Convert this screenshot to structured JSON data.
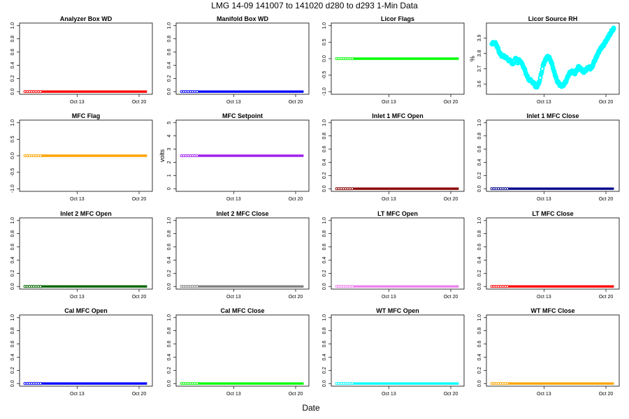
{
  "figure": {
    "title": "LMG  14-09    141007 to 141020    d280 to d293   1-Min Data",
    "xlabel": "Date"
  },
  "chart_data": [
    {
      "type": "scatter",
      "title": "Analyzer Box WD",
      "ylabel": "",
      "ylim": [
        0,
        1
      ],
      "yticks": [
        "0.0",
        "0.2",
        "0.4",
        "0.6",
        "0.8",
        "1.0"
      ],
      "yvals": [
        0,
        0.2,
        0.4,
        0.6,
        0.8,
        1.0
      ],
      "xticks": [
        "Oct 13",
        "Oct 20"
      ],
      "color": "#ff0000",
      "series": {
        "name": "Analyzer Box WD",
        "x_days": [
          7.1,
          20.9
        ],
        "y_constant": 0
      }
    },
    {
      "type": "scatter",
      "title": "Manifold Box WD",
      "ylabel": "",
      "ylim": [
        0,
        1
      ],
      "yticks": [
        "0.0",
        "0.2",
        "0.4",
        "0.6",
        "0.8",
        "1.0"
      ],
      "yvals": [
        0,
        0.2,
        0.4,
        0.6,
        0.8,
        1.0
      ],
      "xticks": [
        "Oct 13",
        "Oct 20"
      ],
      "color": "#0000ff",
      "series": {
        "name": "Manifold Box WD",
        "x_days": [
          7.1,
          20.9
        ],
        "y_constant": 0
      }
    },
    {
      "type": "scatter",
      "title": "Licor Flags",
      "ylabel": "",
      "ylim": [
        -1,
        1
      ],
      "yticks": [
        "-1.0",
        "-0.5",
        "0.0",
        "0.5",
        "1.0"
      ],
      "yvals": [
        -1,
        -0.5,
        0,
        0.5,
        1
      ],
      "xticks": [
        "Oct 13",
        "Oct 20"
      ],
      "color": "#00ff00",
      "series": {
        "name": "Licor Flags",
        "x_days": [
          7.1,
          20.9
        ],
        "y_constant": 0
      }
    },
    {
      "type": "scatter",
      "title": "Licor Source RH",
      "ylabel": "%",
      "ylim": [
        3.55,
        3.98
      ],
      "yticks": [
        "3.6",
        "3.7",
        "3.8",
        "3.9"
      ],
      "yvals": [
        3.6,
        3.7,
        3.8,
        3.9
      ],
      "xticks": [
        "Oct 13",
        "Oct 20"
      ],
      "color": "#00ffff",
      "series": {
        "name": "Licor Source RH",
        "x": [
          7.1,
          7.4,
          7.6,
          7.8,
          8.0,
          8.3,
          8.6,
          8.9,
          9.2,
          9.5,
          9.8,
          10.0,
          10.2,
          10.5,
          10.8,
          11.0,
          11.3,
          11.6,
          11.9,
          12.1,
          12.3,
          12.5,
          12.7,
          12.9,
          13.1,
          13.3,
          13.5,
          13.7,
          13.9,
          14.1,
          14.3,
          14.5,
          14.7,
          14.9,
          15.1,
          15.3,
          15.5,
          15.7,
          15.9,
          16.1,
          16.3,
          16.5,
          16.7,
          16.9,
          17.1,
          17.3,
          17.5,
          17.7,
          17.9,
          18.1,
          18.3,
          18.5,
          18.7,
          18.9,
          19.1,
          19.3,
          19.5,
          19.7,
          19.9,
          20.1,
          20.3,
          20.5,
          20.7,
          20.9
        ],
        "y": [
          3.86,
          3.87,
          3.86,
          3.83,
          3.8,
          3.78,
          3.78,
          3.76,
          3.75,
          3.73,
          3.77,
          3.74,
          3.76,
          3.73,
          3.7,
          3.66,
          3.63,
          3.62,
          3.6,
          3.58,
          3.59,
          3.62,
          3.67,
          3.72,
          3.75,
          3.77,
          3.78,
          3.76,
          3.73,
          3.69,
          3.65,
          3.62,
          3.6,
          3.59,
          3.59,
          3.6,
          3.62,
          3.65,
          3.67,
          3.68,
          3.68,
          3.67,
          3.69,
          3.71,
          3.7,
          3.69,
          3.68,
          3.69,
          3.7,
          3.71,
          3.7,
          3.72,
          3.75,
          3.77,
          3.8,
          3.82,
          3.84,
          3.85,
          3.87,
          3.89,
          3.91,
          3.93,
          3.95,
          3.96
        ]
      }
    },
    {
      "type": "scatter",
      "title": "MFC Flag",
      "ylabel": "",
      "ylim": [
        -1,
        1
      ],
      "yticks": [
        "-1.0",
        "-0.5",
        "0.0",
        "0.5",
        "1.0"
      ],
      "yvals": [
        -1,
        -0.5,
        0,
        0.5,
        1
      ],
      "xticks": [
        "Oct 13",
        "Oct 20"
      ],
      "color": "#ffa500",
      "series": {
        "name": "MFC Flag",
        "x_days": [
          7.1,
          20.9
        ],
        "y_constant": 0
      }
    },
    {
      "type": "scatter",
      "title": "MFC Setpoint",
      "ylabel": "volts",
      "ylim": [
        0,
        5
      ],
      "yticks": [
        "0",
        "1",
        "2",
        "3",
        "4",
        "5"
      ],
      "yvals": [
        0,
        1,
        2,
        3,
        4,
        5
      ],
      "xticks": [
        "Oct 13",
        "Oct 20"
      ],
      "color": "#a020f0",
      "series": {
        "name": "MFC Setpoint",
        "x_days": [
          7.1,
          20.9
        ],
        "y_constant": 2.5
      }
    },
    {
      "type": "scatter",
      "title": "Inlet 1 MFC Open",
      "ylabel": "",
      "ylim": [
        0,
        1
      ],
      "yticks": [
        "0.0",
        "0.2",
        "0.4",
        "0.6",
        "0.8",
        "1.0"
      ],
      "yvals": [
        0,
        0.2,
        0.4,
        0.6,
        0.8,
        1.0
      ],
      "xticks": [
        "Oct 13",
        "Oct 20"
      ],
      "color": "#8b0000",
      "series": {
        "name": "Inlet 1 MFC Open",
        "x_days": [
          7.1,
          20.9
        ],
        "y_constant": 0
      }
    },
    {
      "type": "scatter",
      "title": "Inlet 1 MFC Close",
      "ylabel": "",
      "ylim": [
        0,
        1
      ],
      "yticks": [
        "0.0",
        "0.2",
        "0.4",
        "0.6",
        "0.8",
        "1.0"
      ],
      "yvals": [
        0,
        0.2,
        0.4,
        0.6,
        0.8,
        1.0
      ],
      "xticks": [
        "Oct 13",
        "Oct 20"
      ],
      "color": "#00008b",
      "series": {
        "name": "Inlet 1 MFC Close",
        "x_days": [
          7.1,
          20.9
        ],
        "y_constant": 0
      }
    },
    {
      "type": "scatter",
      "title": "Inlet 2 MFC Open",
      "ylabel": "",
      "ylim": [
        0,
        1
      ],
      "yticks": [
        "0.0",
        "0.2",
        "0.4",
        "0.6",
        "0.8",
        "1.0"
      ],
      "yvals": [
        0,
        0.2,
        0.4,
        0.6,
        0.8,
        1.0
      ],
      "xticks": [
        "Oct 13",
        "Oct 20"
      ],
      "color": "#006400",
      "series": {
        "name": "Inlet 2 MFC Open",
        "x_days": [
          7.1,
          20.9
        ],
        "y_constant": 0
      }
    },
    {
      "type": "scatter",
      "title": "Inlet 2 MFC Close",
      "ylabel": "",
      "ylim": [
        0,
        1
      ],
      "yticks": [
        "0.0",
        "0.2",
        "0.4",
        "0.6",
        "0.8",
        "1.0"
      ],
      "yvals": [
        0,
        0.2,
        0.4,
        0.6,
        0.8,
        1.0
      ],
      "xticks": [
        "Oct 13",
        "Oct 20"
      ],
      "color": "#808080",
      "series": {
        "name": "Inlet 2 MFC Close",
        "x_days": [
          7.1,
          20.9
        ],
        "y_constant": 0
      }
    },
    {
      "type": "scatter",
      "title": "LT MFC Open",
      "ylabel": "",
      "ylim": [
        0,
        1
      ],
      "yticks": [
        "0.0",
        "0.2",
        "0.4",
        "0.6",
        "0.8",
        "1.0"
      ],
      "yvals": [
        0,
        0.2,
        0.4,
        0.6,
        0.8,
        1.0
      ],
      "xticks": [
        "Oct 13",
        "Oct 20"
      ],
      "color": "#ee82ee",
      "series": {
        "name": "LT MFC Open",
        "x_days": [
          7.1,
          20.9
        ],
        "y_constant": 0
      }
    },
    {
      "type": "scatter",
      "title": "LT MFC Close",
      "ylabel": "",
      "ylim": [
        0,
        1
      ],
      "yticks": [
        "0.0",
        "0.2",
        "0.4",
        "0.6",
        "0.8",
        "1.0"
      ],
      "yvals": [
        0,
        0.2,
        0.4,
        0.6,
        0.8,
        1.0
      ],
      "xticks": [
        "Oct 13",
        "Oct 20"
      ],
      "color": "#ff0000",
      "series": {
        "name": "LT MFC Close",
        "x_days": [
          7.1,
          20.9
        ],
        "y_constant": 0
      }
    },
    {
      "type": "scatter",
      "title": "Cal MFC Open",
      "ylabel": "",
      "ylim": [
        0,
        1
      ],
      "yticks": [
        "0.0",
        "0.2",
        "0.4",
        "0.6",
        "0.8",
        "1.0"
      ],
      "yvals": [
        0,
        0.2,
        0.4,
        0.6,
        0.8,
        1.0
      ],
      "xticks": [
        "Oct 13",
        "Oct 20"
      ],
      "color": "#0000ff",
      "series": {
        "name": "Cal MFC Open",
        "x_days": [
          7.1,
          20.9
        ],
        "y_constant": 0
      }
    },
    {
      "type": "scatter",
      "title": "Cal MFC Close",
      "ylabel": "",
      "ylim": [
        0,
        1
      ],
      "yticks": [
        "0.0",
        "0.2",
        "0.4",
        "0.6",
        "0.8",
        "1.0"
      ],
      "yvals": [
        0,
        0.2,
        0.4,
        0.6,
        0.8,
        1.0
      ],
      "xticks": [
        "Oct 13",
        "Oct 20"
      ],
      "color": "#00ff00",
      "series": {
        "name": "Cal MFC Close",
        "x_days": [
          7.1,
          20.9
        ],
        "y_constant": 0
      }
    },
    {
      "type": "scatter",
      "title": "WT MFC Open",
      "ylabel": "",
      "ylim": [
        0,
        1
      ],
      "yticks": [
        "0.0",
        "0.2",
        "0.4",
        "0.6",
        "0.8",
        "1.0"
      ],
      "yvals": [
        0,
        0.2,
        0.4,
        0.6,
        0.8,
        1.0
      ],
      "xticks": [
        "Oct 13",
        "Oct 20"
      ],
      "color": "#00ffff",
      "series": {
        "name": "WT MFC Open",
        "x_days": [
          7.1,
          20.9
        ],
        "y_constant": 0
      }
    },
    {
      "type": "scatter",
      "title": "WT MFC Close",
      "ylabel": "",
      "ylim": [
        0,
        1
      ],
      "yticks": [
        "0.0",
        "0.2",
        "0.4",
        "0.6",
        "0.8",
        "1.0"
      ],
      "yvals": [
        0,
        0.2,
        0.4,
        0.6,
        0.8,
        1.0
      ],
      "xticks": [
        "Oct 13",
        "Oct 20"
      ],
      "color": "#ffa500",
      "series": {
        "name": "WT MFC Close",
        "x_days": [
          7.1,
          20.9
        ],
        "y_constant": 0
      }
    }
  ],
  "x_axis": {
    "domain_days": [
      6.5,
      21.5
    ],
    "tick_days": [
      13,
      20
    ]
  }
}
